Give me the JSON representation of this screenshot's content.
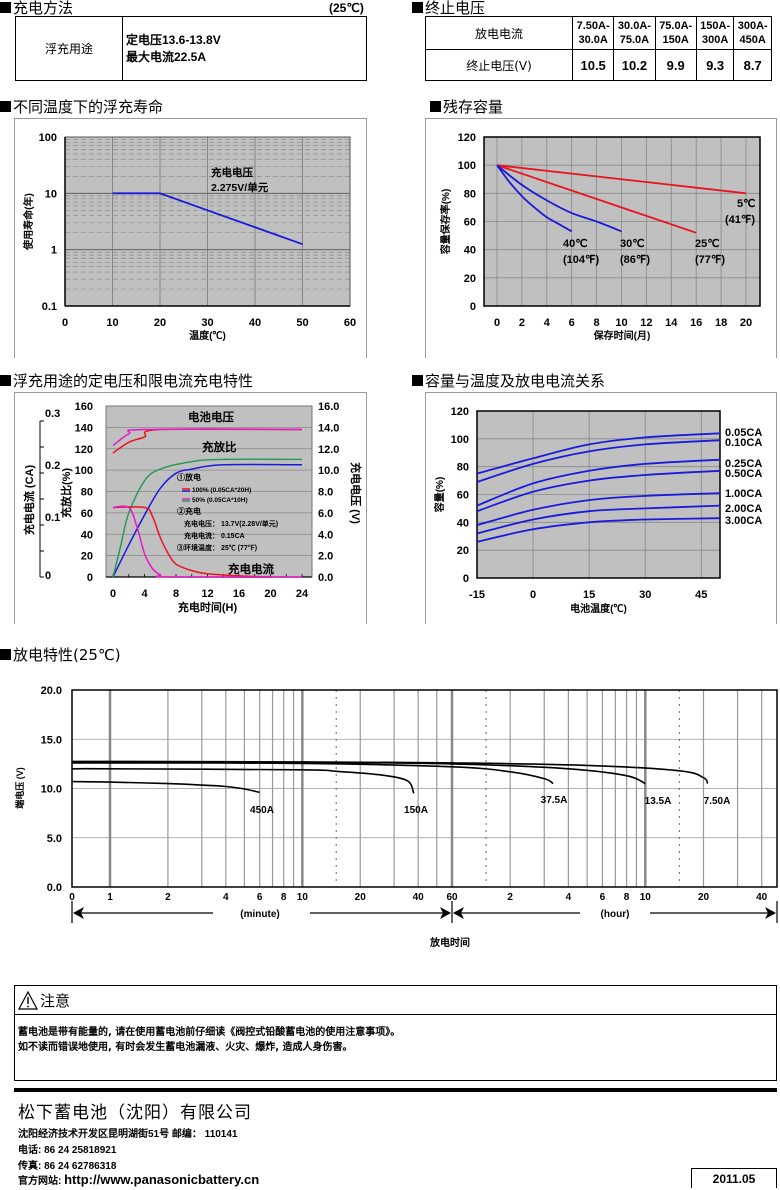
{
  "charging_method": {
    "title": "充电方法",
    "temp_note": "(25℃)",
    "row_label": "浮充用途",
    "line1": "定电压13.6-13.8V",
    "line2": "最大电流22.5A"
  },
  "cutoff_voltage": {
    "title": "终止电压",
    "row1_label": "放电电流",
    "row2_label": "终止电压(V)",
    "currents": [
      {
        "top": "7.50A-",
        "bottom": "30.0A"
      },
      {
        "top": "30.0A-",
        "bottom": "75.0A"
      },
      {
        "top": "75.0A-",
        "bottom": "150A"
      },
      {
        "top": "150A-",
        "bottom": "300A"
      },
      {
        "top": "300A-",
        "bottom": "450A"
      }
    ],
    "voltages": [
      "10.5",
      "10.2",
      "9.9",
      "9.3",
      "8.7"
    ]
  },
  "chart_data": [
    {
      "id": "float-life",
      "type": "line",
      "title": "不同温度下的浮充寿命",
      "xlabel": "温度(℃)",
      "ylabel": "使用寿命(年)",
      "yscale": "log",
      "xlim": [
        0,
        60
      ],
      "ylim": [
        0.1,
        100
      ],
      "xticks": [
        "0",
        "10",
        "20",
        "30",
        "40",
        "50",
        "60"
      ],
      "yticks": [
        "0.1",
        "1",
        "10",
        "100"
      ],
      "annotation": [
        "充电电压",
        "2.275V/单元"
      ],
      "series": [
        {
          "name": "life",
          "color": "#1a1adc",
          "x": [
            10,
            20,
            30,
            40,
            50
          ],
          "y": [
            10,
            10,
            5,
            2.5,
            1.25
          ]
        }
      ]
    },
    {
      "id": "residual-capacity",
      "type": "line",
      "title": "残存容量",
      "xlabel": "保存时间(月)",
      "ylabel": "容量保存率(%)",
      "xlim": [
        0,
        20
      ],
      "ylim": [
        0,
        120
      ],
      "xticks": [
        "0",
        "2",
        "4",
        "6",
        "8",
        "10",
        "12",
        "14",
        "16",
        "18",
        "20"
      ],
      "yticks": [
        "0",
        "20",
        "40",
        "60",
        "80",
        "100",
        "120"
      ],
      "series": [
        {
          "name": "5℃",
          "label2": "(41℉)",
          "color": "#e8141e",
          "x": [
            0,
            20
          ],
          "y": [
            100,
            80
          ]
        },
        {
          "name": "25℃",
          "label2": "(77℉)",
          "color": "#e8141e",
          "x": [
            0,
            4,
            8,
            12,
            16
          ],
          "y": [
            100,
            88,
            76,
            64,
            52
          ]
        },
        {
          "name": "30℃",
          "label2": "(86℉)",
          "color": "#1a1adc",
          "x": [
            0,
            2,
            4,
            6,
            8,
            10
          ],
          "y": [
            100,
            86,
            75,
            66,
            60,
            53
          ]
        },
        {
          "name": "40℃",
          "label2": "(104℉)",
          "color": "#1a1adc",
          "x": [
            0,
            1,
            2,
            3,
            4,
            5,
            6
          ],
          "y": [
            100,
            88,
            78,
            70,
            63,
            58,
            53
          ]
        }
      ]
    },
    {
      "id": "float-charge-characteristics",
      "type": "line",
      "title": "浮充用途的定电压和限电流充电特性",
      "xlabel": "充电时间(H)",
      "ylabel_left_outer": "充电电流 (CA)",
      "ylabel_left_inner": "充放比(%)",
      "ylabel_right": "充电电压 (V)",
      "xlim": [
        0,
        24
      ],
      "ylim": [
        0,
        160
      ],
      "xticks": [
        "0",
        "4",
        "8",
        "12",
        "16",
        "20",
        "24"
      ],
      "yticks": [
        "0",
        "20",
        "40",
        "60",
        "80",
        "100",
        "120",
        "140",
        "160"
      ],
      "yticks_right": [
        "0.0",
        "2.0",
        "4.0",
        "6.0",
        "8.0",
        "10.0",
        "12.0",
        "14.0",
        "16.0"
      ],
      "yticks_ca": [
        "0",
        "0.1",
        "0.2",
        "0.3"
      ],
      "annotations": {
        "voltage": "电池电压",
        "ratio": "充放比",
        "current": "充电电流",
        "discharge_head": "①放电",
        "legend_100": "100% (0.05CA*20H)",
        "legend_50": "50% (0.05CA*10H)",
        "charge_head": "②充电",
        "charge_voltage": "充电电压： 13.7V(2.28V/单元)",
        "charge_current": "充电电流： 0.15CA",
        "ambient": "③环境温度： 25℃ (77℉)"
      },
      "series": [
        {
          "name": "voltage-100%",
          "color": "#e8141e",
          "x": [
            0,
            2,
            4,
            6,
            24
          ],
          "y": [
            116,
            126,
            131,
            138,
            138
          ]
        },
        {
          "name": "voltage-50%",
          "color": "#e619c8",
          "x": [
            0,
            2,
            4,
            24
          ],
          "y": [
            123,
            134,
            138,
            138
          ]
        },
        {
          "name": "ratio-100%",
          "color": "#1a1adc",
          "x": [
            0,
            2,
            4,
            6,
            8,
            10,
            14,
            24
          ],
          "y": [
            0,
            30,
            58,
            83,
            97,
            101,
            105,
            105
          ]
        },
        {
          "name": "ratio-50%",
          "color": "#2a9a5a",
          "x": [
            0,
            1,
            2,
            4,
            6,
            10,
            14,
            24
          ],
          "y": [
            0,
            30,
            60,
            90,
            101,
            108,
            110,
            110
          ]
        },
        {
          "name": "current-100%",
          "color": "#e8141e",
          "x": [
            0,
            4,
            5,
            6,
            7,
            8,
            10,
            12,
            16,
            20
          ],
          "y": [
            65,
            65,
            57,
            37,
            22,
            12,
            6,
            3,
            1,
            0
          ]
        },
        {
          "name": "current-50%",
          "color": "#e619c8",
          "x": [
            0,
            2,
            3,
            4,
            5,
            6,
            7,
            24
          ],
          "y": [
            65,
            65,
            48,
            22,
            8,
            2,
            0,
            0
          ]
        }
      ]
    },
    {
      "id": "capacity-vs-temperature",
      "type": "line",
      "title": "容量与温度及放电电流关系",
      "xlabel": "电池温度(℃)",
      "ylabel": "容量(%)",
      "xlim": [
        -15,
        50
      ],
      "ylim": [
        0,
        120
      ],
      "xticks": [
        "-15",
        "0",
        "15",
        "30",
        "45"
      ],
      "yticks": [
        "0",
        "20",
        "40",
        "60",
        "80",
        "100",
        "120"
      ],
      "x": [
        -15,
        0,
        15,
        30,
        50
      ],
      "series": [
        {
          "name": "0.05CA",
          "color": "#1a1adc",
          "y": [
            75,
            86,
            96,
            101,
            104
          ]
        },
        {
          "name": "0.10CA",
          "color": "#1a1adc",
          "y": [
            69,
            82,
            91,
            96,
            99
          ]
        },
        {
          "name": "0.25CA",
          "color": "#1a1adc",
          "y": [
            52,
            68,
            77,
            82,
            85
          ]
        },
        {
          "name": "0.50CA",
          "color": "#1a1adc",
          "y": [
            48,
            62,
            70,
            74,
            77
          ]
        },
        {
          "name": "1.00CA",
          "color": "#1a1adc",
          "y": [
            38,
            49,
            56,
            59,
            61
          ]
        },
        {
          "name": "2.00CA",
          "color": "#1a1adc",
          "y": [
            32,
            42,
            48,
            50,
            52
          ]
        },
        {
          "name": "3.00CA",
          "color": "#1a1adc",
          "y": [
            26,
            35,
            40,
            42,
            43
          ]
        }
      ]
    },
    {
      "id": "discharge-characteristics",
      "type": "line",
      "title": "放电特性(25℃)",
      "xlabel": "放电时间",
      "ylabel": "端电压 (V)",
      "xscale": "log-minutes",
      "xlim_minutes": [
        0.5,
        3000
      ],
      "ylim": [
        0,
        20
      ],
      "yticks": [
        "0.0",
        "5.0",
        "10.0",
        "15.0",
        "20.0"
      ],
      "xticks_minute": [
        "0",
        "1",
        "2",
        "4",
        "6",
        "8",
        "10",
        "20",
        "40",
        "60"
      ],
      "xticks_hour": [
        "2",
        "4",
        "6",
        "8",
        "10",
        "20",
        "40"
      ],
      "minute_label": "(minute)",
      "hour_label": "(hour)",
      "series": [
        {
          "name": "450A",
          "x_min": [
            0.5,
            1,
            2,
            3,
            4,
            5,
            6
          ],
          "y": [
            10.7,
            10.65,
            10.5,
            10.35,
            10.2,
            9.95,
            9.6
          ]
        },
        {
          "name": "150A",
          "x_min": [
            0.5,
            1,
            10,
            15,
            25,
            35,
            38
          ],
          "y": [
            12.0,
            12.0,
            11.9,
            11.75,
            11.4,
            10.8,
            9.5
          ]
        },
        {
          "name": "37.5A",
          "x_min": [
            0.5,
            1,
            10,
            60,
            120,
            180,
            200
          ],
          "y": [
            12.6,
            12.6,
            12.55,
            12.2,
            11.7,
            11.0,
            10.5
          ]
        },
        {
          "name": "13.5A",
          "x_min": [
            0.5,
            1,
            10,
            60,
            240,
            480,
            600
          ],
          "y": [
            12.7,
            12.7,
            12.65,
            12.5,
            12.0,
            11.3,
            10.5
          ]
        },
        {
          "name": "7.50A",
          "x_min": [
            0.5,
            1,
            10,
            60,
            300,
            900,
            1200,
            1260
          ],
          "y": [
            12.75,
            12.75,
            12.7,
            12.6,
            12.35,
            11.8,
            11.1,
            10.5
          ]
        }
      ]
    }
  ],
  "notice": {
    "title": "注意",
    "line1": "蓄电池是带有能量的, 请在使用蓄电池前仔细读《阀控式铅酸蓄电池的使用注意事项》。",
    "line2": "如不读而错误地使用, 有时会发生蓄电池漏液、火灾、爆炸, 造成人身伤害。"
  },
  "footer": {
    "company": "松下蓄电池（沈阳）有限公司",
    "address": "沈阳经济技术开发区昆明湖街51号 邮编： 110141",
    "phone": "电话: 86 24 25818921",
    "fax": "传真: 86 24 62786318",
    "website_label": "官方网站: ",
    "website": "http://www.panasonicbattery.cn",
    "date": "2011.05"
  }
}
